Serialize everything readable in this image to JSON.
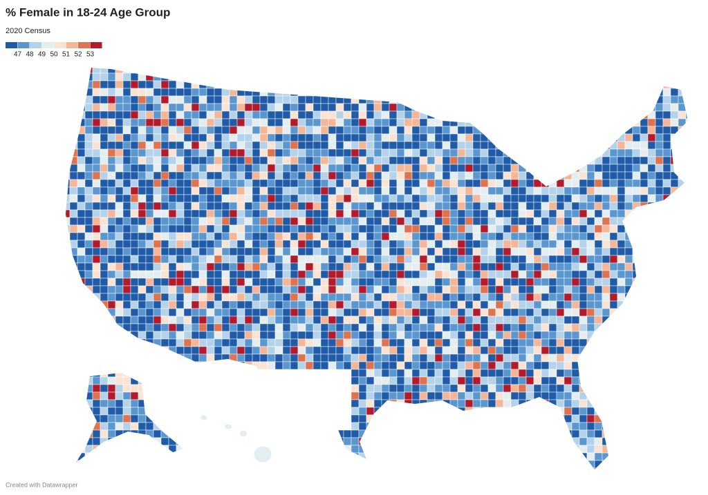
{
  "chart_data": {
    "type": "choropleth",
    "title": "% Female in 18-24 Age Group",
    "subtitle": "2020 Census",
    "legend": {
      "colors": [
        "#1f5ba6",
        "#5b97cf",
        "#b4d3ea",
        "#e4eef0",
        "#fbe3d4",
        "#f5b697",
        "#e0734f",
        "#b31b2c"
      ],
      "ticks": [
        47,
        48,
        49,
        50,
        51,
        52,
        53
      ]
    },
    "footer": "Created with Datawrapper"
  }
}
